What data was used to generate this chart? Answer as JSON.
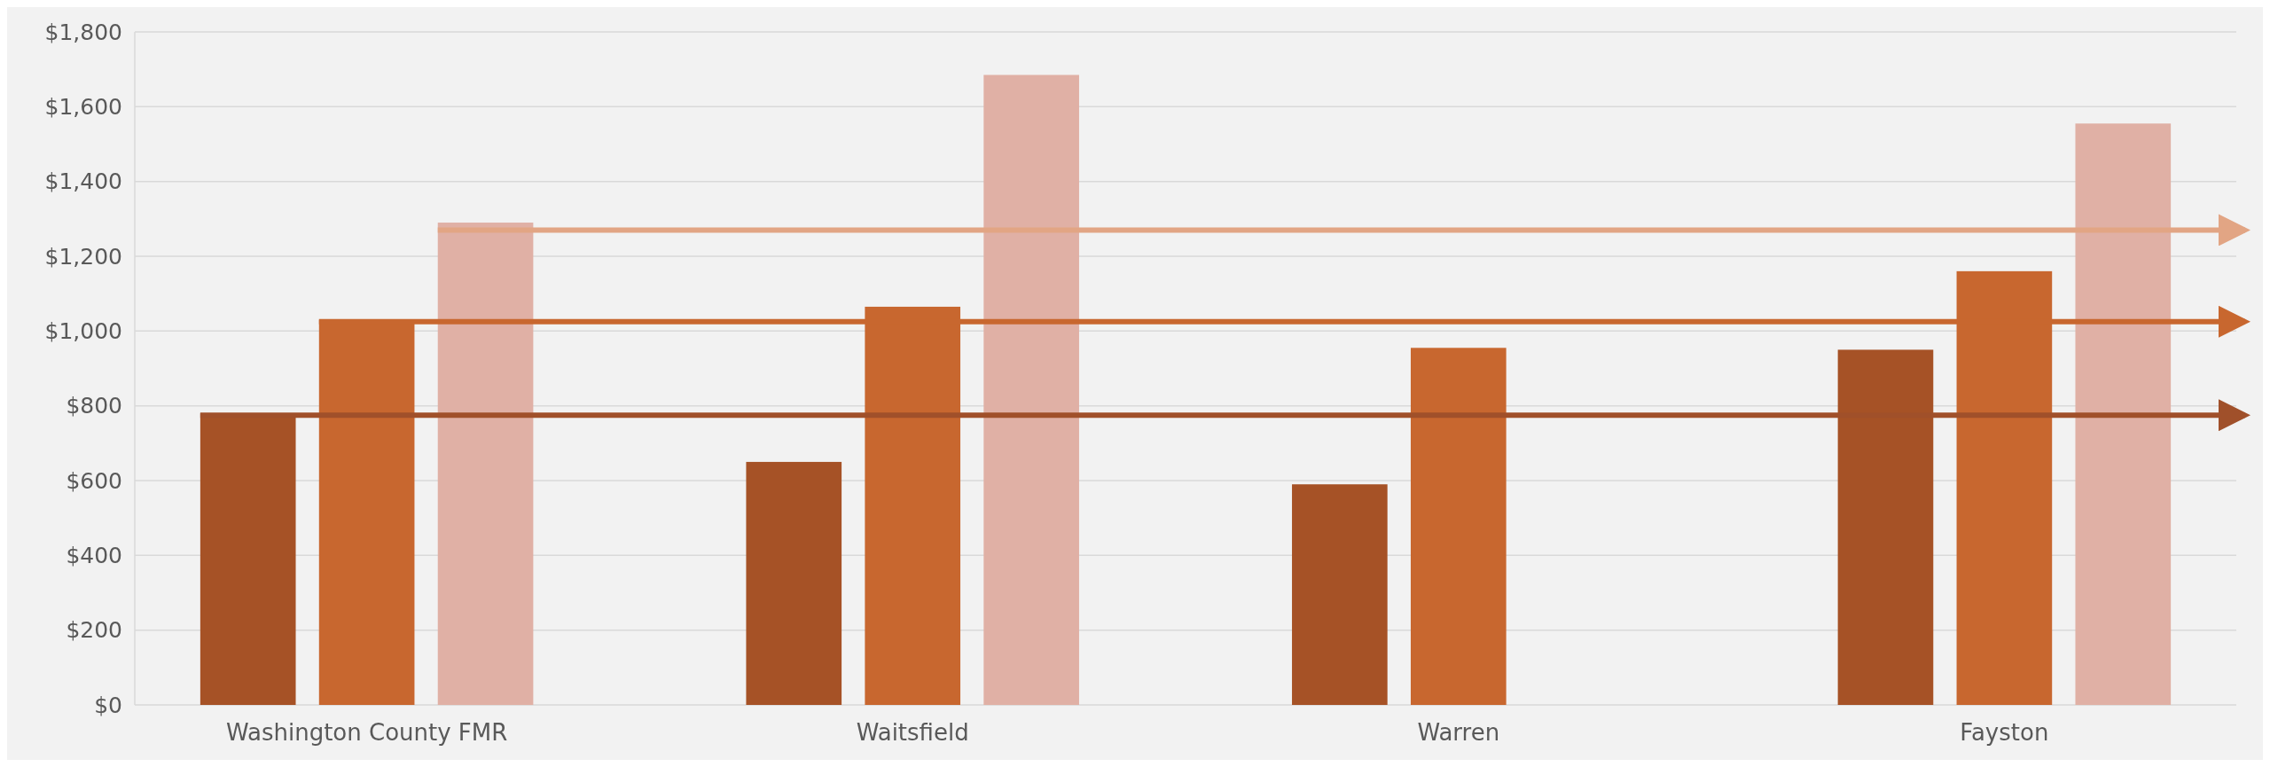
{
  "chart_data": {
    "type": "bar",
    "categories": [
      "Washington County FMR",
      "Waitsfield",
      "Warren",
      "Fayston"
    ],
    "series": [
      {
        "color": "#a65226",
        "values": [
          780,
          650,
          590,
          950
        ]
      },
      {
        "color": "#c8672f",
        "values": [
          1030,
          1065,
          955,
          1160
        ]
      },
      {
        "color": "#e0b0a5",
        "values": [
          1290,
          1685,
          null,
          1555
        ]
      }
    ],
    "ylim": [
      0,
      1800
    ],
    "yticks": [
      {
        "value": 0,
        "label": "$0"
      },
      {
        "value": 200,
        "label": "$200"
      },
      {
        "value": 400,
        "label": "$400"
      },
      {
        "value": 600,
        "label": "$600"
      },
      {
        "value": 800,
        "label": "$800"
      },
      {
        "value": 1000,
        "label": "$1,000"
      },
      {
        "value": 1200,
        "label": "$1,200"
      },
      {
        "value": 1400,
        "label": "$1,400"
      },
      {
        "value": 1600,
        "label": "$1,600"
      },
      {
        "value": 1800,
        "label": "$1,800"
      }
    ],
    "grid": "y",
    "ref_lines": [
      {
        "axis": "y",
        "value": 775,
        "color": "#a0502a"
      },
      {
        "axis": "y",
        "value": 1025,
        "color": "#c8672f"
      },
      {
        "axis": "y",
        "value": 1270,
        "color": "#e2a584"
      }
    ]
  }
}
